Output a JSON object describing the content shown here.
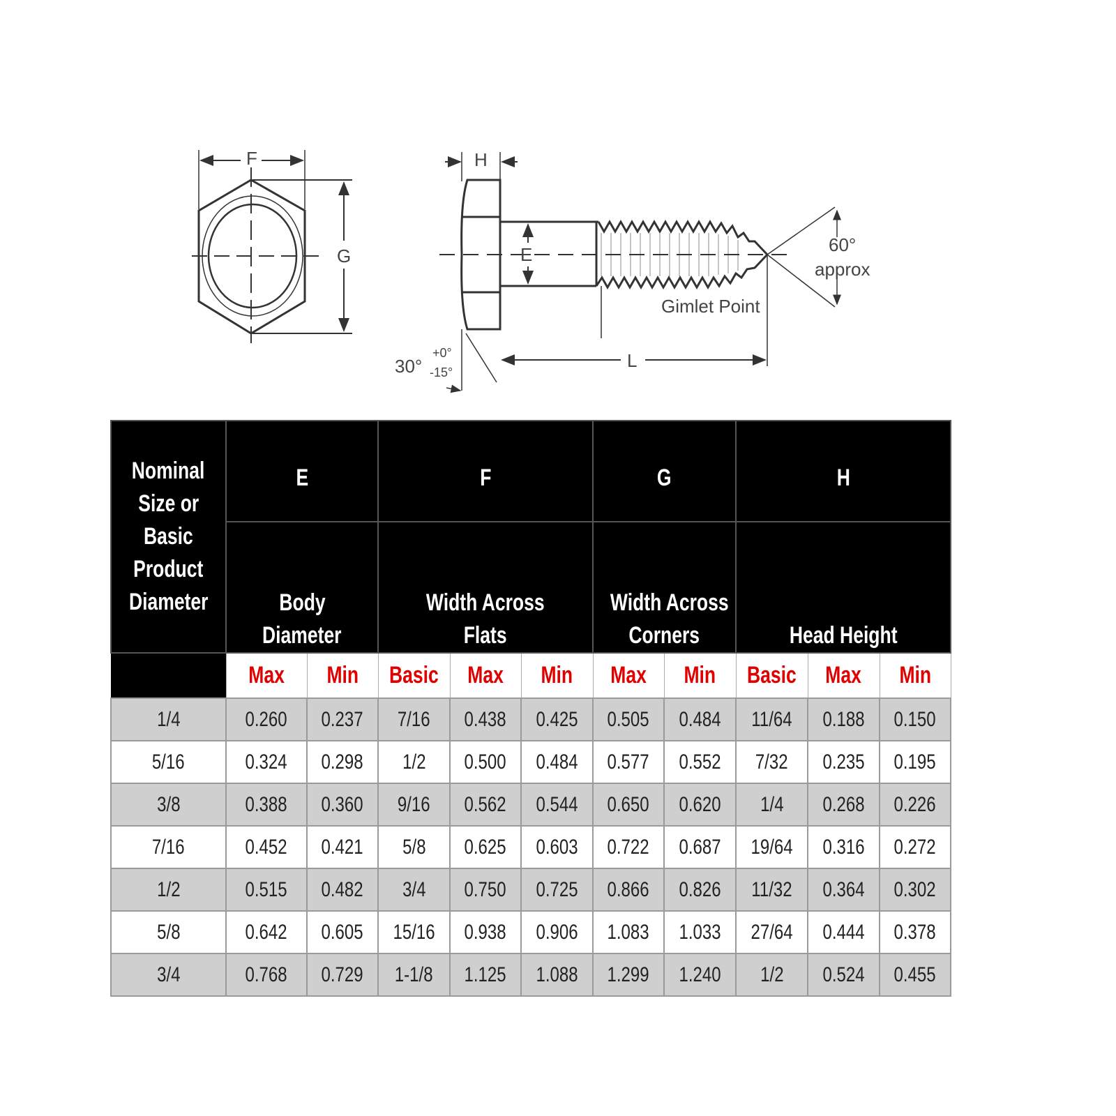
{
  "diagram": {
    "labels": {
      "F": "F",
      "G": "G",
      "H": "H",
      "E": "E",
      "L": "L",
      "angle_tip": "60°",
      "approx": "approx",
      "gimlet": "Gimlet Point",
      "angle_head": "30°",
      "tol_plus": "+0°",
      "tol_minus": "-15°"
    }
  },
  "table": {
    "nominal_header": [
      "Nominal",
      "Size or",
      "Basic",
      "Product",
      "Diameter"
    ],
    "groups": [
      {
        "letter": "E",
        "name": [
          "Body",
          "Diameter"
        ],
        "subs": [
          "Max",
          "Min"
        ]
      },
      {
        "letter": "F",
        "name": [
          "Width Across",
          "Flats"
        ],
        "subs": [
          "Basic",
          "Max",
          "Min"
        ]
      },
      {
        "letter": "G",
        "name": [
          "Width Across",
          "Corners"
        ],
        "subs": [
          "Max",
          "Min"
        ]
      },
      {
        "letter": "H",
        "name": [
          "Head Height"
        ],
        "subs": [
          "Basic",
          "Max",
          "Min"
        ]
      }
    ],
    "label_color": "#e00000",
    "rows": [
      [
        "1/4",
        "0.260",
        "0.237",
        "7/16",
        "0.438",
        "0.425",
        "0.505",
        "0.484",
        "11/64",
        "0.188",
        "0.150"
      ],
      [
        "5/16",
        "0.324",
        "0.298",
        "1/2",
        "0.500",
        "0.484",
        "0.577",
        "0.552",
        "7/32",
        "0.235",
        "0.195"
      ],
      [
        "3/8",
        "0.388",
        "0.360",
        "9/16",
        "0.562",
        "0.544",
        "0.650",
        "0.620",
        "1/4",
        "0.268",
        "0.226"
      ],
      [
        "7/16",
        "0.452",
        "0.421",
        "5/8",
        "0.625",
        "0.603",
        "0.722",
        "0.687",
        "19/64",
        "0.316",
        "0.272"
      ],
      [
        "1/2",
        "0.515",
        "0.482",
        "3/4",
        "0.750",
        "0.725",
        "0.866",
        "0.826",
        "11/32",
        "0.364",
        "0.302"
      ],
      [
        "5/8",
        "0.642",
        "0.605",
        "15/16",
        "0.938",
        "0.906",
        "1.083",
        "1.033",
        "27/64",
        "0.444",
        "0.378"
      ],
      [
        "3/4",
        "0.768",
        "0.729",
        "1-1/8",
        "1.125",
        "1.088",
        "1.299",
        "1.240",
        "1/2",
        "0.524",
        "0.455"
      ]
    ]
  }
}
